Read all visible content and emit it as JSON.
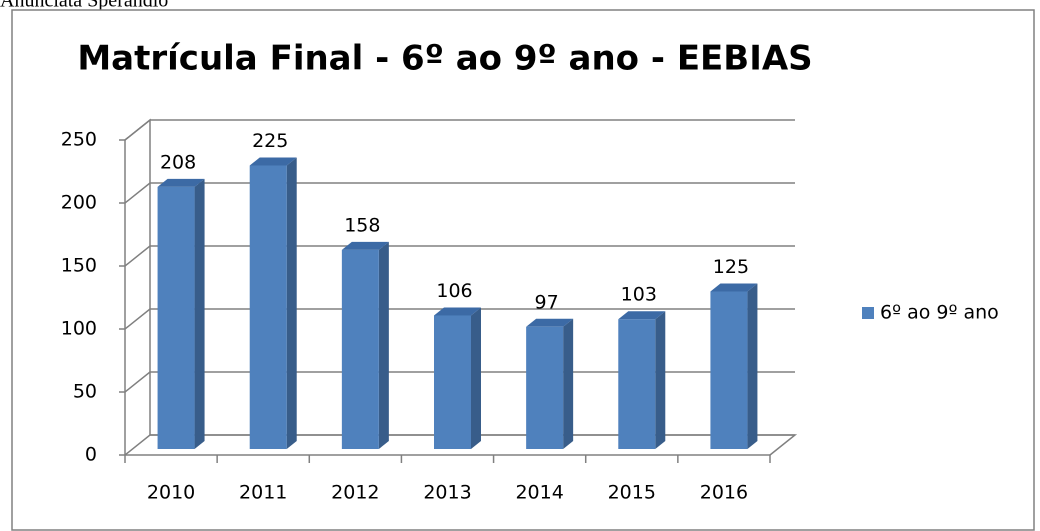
{
  "header_text": "Anunciata Sperandio",
  "chart_data": {
    "type": "bar3d",
    "title": "Matrícula Final - 6º ao 9º ano - EEBIAS",
    "categories": [
      "2010",
      "2011",
      "2012",
      "2013",
      "2014",
      "2015",
      "2016"
    ],
    "series": [
      {
        "name": "6º ao 9º ano",
        "color": "#4f81bd",
        "values": [
          208,
          225,
          158,
          106,
          97,
          103,
          125
        ]
      }
    ],
    "ylim": [
      0,
      250
    ],
    "yticks": [
      0,
      50,
      100,
      150,
      200,
      250
    ],
    "grid": true,
    "legend": "right"
  }
}
